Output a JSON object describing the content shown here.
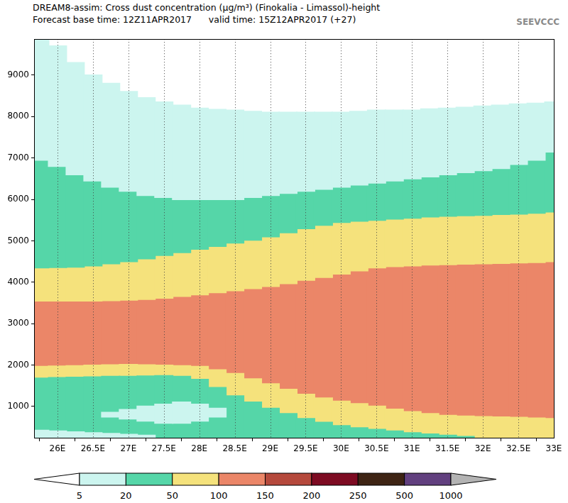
{
  "chart_data": {
    "type": "filled_contour",
    "title": "DREAM8-assim: Cross dust concentration (μg/m³) (Finokalia - Limassol)-height",
    "subtitle": "Forecast base time: 12Z11APR2017      valid time: 15Z12APR2017 (+27)",
    "logo": "SEEVCCC",
    "xlim": [
      25.67,
      33
    ],
    "xticks": [
      {
        "value": 26,
        "label": "26E"
      },
      {
        "value": 26.5,
        "label": "26.5E"
      },
      {
        "value": 27,
        "label": "27E"
      },
      {
        "value": 27.5,
        "label": "27.5E"
      },
      {
        "value": 28,
        "label": "28E"
      },
      {
        "value": 28.5,
        "label": "28.5E"
      },
      {
        "value": 29,
        "label": "29E"
      },
      {
        "value": 29.5,
        "label": "29.5E"
      },
      {
        "value": 30,
        "label": "30E"
      },
      {
        "value": 30.5,
        "label": "30.5E"
      },
      {
        "value": 31,
        "label": "31E"
      },
      {
        "value": 31.5,
        "label": "31.5E"
      },
      {
        "value": 32,
        "label": "32E"
      },
      {
        "value": 32.5,
        "label": "32.5E"
      },
      {
        "value": 33,
        "label": "33E"
      }
    ],
    "ylim": [
      243,
      9870
    ],
    "yticks": [
      1000,
      2000,
      3000,
      4000,
      5000,
      6000,
      7000,
      8000,
      9000
    ],
    "grid": "x",
    "profiles": [
      {
        "x": 25.75,
        "levels": [
          5,
          20,
          50,
          100,
          50,
          20,
          5
        ],
        "bounds": [
          420,
          1680,
          1960,
          3550,
          4350,
          6950
        ]
      },
      {
        "x": 26.0,
        "levels": [
          5,
          20,
          50,
          100,
          50,
          20,
          5,
          0
        ],
        "bounds": [
          400,
          1690,
          1970,
          3550,
          4360,
          6800,
          9700
        ]
      },
      {
        "x": 26.25,
        "levels": [
          5,
          20,
          50,
          100,
          50,
          20,
          5,
          0
        ],
        "bounds": [
          380,
          1700,
          1980,
          3550,
          4370,
          6600,
          9300
        ]
      },
      {
        "x": 26.5,
        "levels": [
          5,
          20,
          50,
          100,
          50,
          20,
          5,
          0
        ],
        "bounds": [
          360,
          1710,
          1990,
          3550,
          4400,
          6450,
          9000
        ]
      },
      {
        "x": 26.75,
        "levels": [
          5,
          20,
          5,
          20,
          50,
          100,
          50,
          20,
          5,
          0
        ],
        "bounds": [
          340,
          750,
          850,
          1720,
          2000,
          3560,
          4450,
          6300,
          8800
        ]
      },
      {
        "x": 27.0,
        "levels": [
          5,
          20,
          5,
          20,
          50,
          100,
          50,
          20,
          5,
          0
        ],
        "bounds": [
          320,
          700,
          920,
          1720,
          2010,
          3570,
          4500,
          6200,
          8600
        ]
      },
      {
        "x": 27.25,
        "levels": [
          5,
          20,
          5,
          20,
          50,
          100,
          50,
          20,
          5,
          0
        ],
        "bounds": [
          300,
          650,
          1000,
          1730,
          2000,
          3590,
          4570,
          6100,
          8450
        ]
      },
      {
        "x": 27.5,
        "levels": [
          20,
          5,
          20,
          50,
          100,
          50,
          20,
          5,
          0
        ],
        "bounds": [
          600,
          1050,
          1740,
          1990,
          3620,
          4650,
          6050,
          8350
        ]
      },
      {
        "x": 27.75,
        "levels": [
          20,
          5,
          20,
          50,
          100,
          50,
          20,
          5,
          0
        ],
        "bounds": [
          600,
          1100,
          1720,
          1980,
          3660,
          4720,
          6000,
          8270
        ]
      },
      {
        "x": 28.0,
        "levels": [
          20,
          5,
          20,
          50,
          100,
          50,
          20,
          5,
          0
        ],
        "bounds": [
          650,
          1050,
          1650,
          1960,
          3700,
          4800,
          6000,
          8200
        ]
      },
      {
        "x": 28.25,
        "levels": [
          20,
          5,
          20,
          50,
          100,
          50,
          20,
          5,
          0
        ],
        "bounds": [
          750,
          950,
          1450,
          1880,
          3750,
          4870,
          6000,
          8170
        ]
      },
      {
        "x": 28.5,
        "levels": [
          20,
          50,
          100,
          50,
          20,
          5,
          0
        ],
        "bounds": [
          1250,
          1790,
          3800,
          4950,
          6000,
          8150
        ]
      },
      {
        "x": 28.75,
        "levels": [
          20,
          50,
          100,
          50,
          20,
          5,
          0
        ],
        "bounds": [
          1100,
          1660,
          3850,
          5020,
          6050,
          8120
        ]
      },
      {
        "x": 29.0,
        "levels": [
          20,
          50,
          100,
          50,
          20,
          5,
          0
        ],
        "bounds": [
          950,
          1540,
          3900,
          5100,
          6100,
          8100
        ]
      },
      {
        "x": 29.25,
        "levels": [
          20,
          50,
          100,
          50,
          20,
          5,
          0
        ],
        "bounds": [
          820,
          1410,
          3970,
          5200,
          6150,
          8100
        ]
      },
      {
        "x": 29.5,
        "levels": [
          20,
          50,
          100,
          50,
          20,
          5,
          0
        ],
        "bounds": [
          700,
          1290,
          4050,
          5300,
          6200,
          8100
        ]
      },
      {
        "x": 29.75,
        "levels": [
          20,
          50,
          100,
          50,
          20,
          5,
          0
        ],
        "bounds": [
          610,
          1200,
          4120,
          5380,
          6250,
          8100
        ]
      },
      {
        "x": 30.0,
        "levels": [
          20,
          50,
          100,
          50,
          20,
          5,
          0
        ],
        "bounds": [
          530,
          1120,
          4200,
          5450,
          6300,
          8100
        ]
      },
      {
        "x": 30.25,
        "levels": [
          20,
          50,
          100,
          50,
          20,
          5,
          0
        ],
        "bounds": [
          480,
          1060,
          4280,
          5480,
          6350,
          8120
        ]
      },
      {
        "x": 30.5,
        "levels": [
          20,
          50,
          100,
          50,
          20,
          5,
          0
        ],
        "bounds": [
          440,
          1000,
          4350,
          5500,
          6400,
          8150
        ]
      },
      {
        "x": 30.75,
        "levels": [
          20,
          50,
          100,
          50,
          20,
          5,
          0
        ],
        "bounds": [
          400,
          930,
          4380,
          5530,
          6450,
          8150
        ]
      },
      {
        "x": 31.0,
        "levels": [
          20,
          50,
          100,
          50,
          20,
          5,
          0
        ],
        "bounds": [
          360,
          870,
          4400,
          5550,
          6500,
          8150
        ]
      },
      {
        "x": 31.25,
        "levels": [
          20,
          50,
          100,
          50,
          20,
          5,
          0
        ],
        "bounds": [
          330,
          820,
          4420,
          5580,
          6550,
          8180
        ]
      },
      {
        "x": 31.5,
        "levels": [
          20,
          50,
          100,
          50,
          20,
          5,
          0
        ],
        "bounds": [
          300,
          780,
          4430,
          5600,
          6600,
          8200
        ]
      },
      {
        "x": 31.75,
        "levels": [
          20,
          50,
          100,
          50,
          20,
          5,
          0
        ],
        "bounds": [
          270,
          760,
          4440,
          5610,
          6650,
          8220
        ]
      },
      {
        "x": 32.0,
        "levels": [
          50,
          100,
          50,
          20,
          5,
          0
        ],
        "bounds": [
          750,
          4450,
          5620,
          6700,
          8250
        ]
      },
      {
        "x": 32.25,
        "levels": [
          50,
          100,
          50,
          20,
          5,
          0
        ],
        "bounds": [
          740,
          4460,
          5640,
          6750,
          8270
        ]
      },
      {
        "x": 32.5,
        "levels": [
          50,
          100,
          50,
          20,
          5,
          0
        ],
        "bounds": [
          730,
          4470,
          5650,
          6850,
          8300
        ]
      },
      {
        "x": 32.75,
        "levels": [
          50,
          100,
          50,
          20,
          5,
          0
        ],
        "bounds": [
          715,
          4480,
          5670,
          6950,
          8320
        ]
      },
      {
        "x": 33.0,
        "levels": [
          50,
          100,
          50,
          20,
          5,
          0
        ],
        "bounds": [
          700,
          4500,
          5700,
          7150,
          8350
        ]
      }
    ],
    "colorbar": {
      "levels": [
        5,
        20,
        50,
        100,
        150,
        200,
        250,
        500,
        1000
      ],
      "colors": [
        "#ffffff",
        "#ccf5ef",
        "#55d6a8",
        "#f5e27c",
        "#eb8668",
        "#b5493c",
        "#7d0b22",
        "#3e2414",
        "#62407f",
        "#b3b3b3"
      ]
    }
  }
}
